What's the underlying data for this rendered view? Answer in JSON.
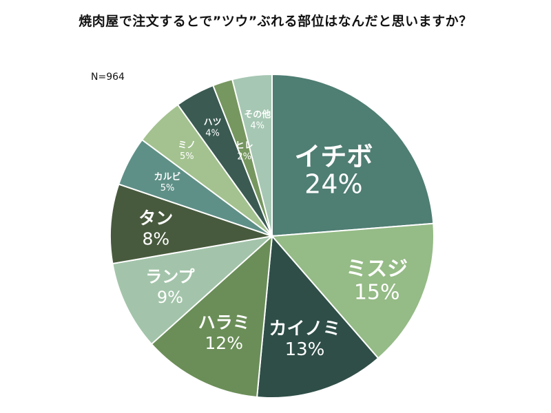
{
  "chart_data": {
    "type": "pie",
    "title": "焼肉屋で注文するとで”ツウ”ぶれる部位はなんだと思いますか？",
    "sample_size": "N=964",
    "slices": [
      {
        "label": "イチボ",
        "value": 24,
        "value_text": "24%",
        "color": "#4f7e73",
        "text_color": "#ffffff"
      },
      {
        "label": "ミスジ",
        "value": 15,
        "value_text": "15%",
        "color": "#95bb86",
        "text_color": "#ffffff"
      },
      {
        "label": "カイノミ",
        "value": 13,
        "value_text": "13%",
        "color": "#2f4e48",
        "text_color": "#ffffff"
      },
      {
        "label": "ハラミ",
        "value": 12,
        "value_text": "12%",
        "color": "#6b8e58",
        "text_color": "#ffffff"
      },
      {
        "label": "ランプ",
        "value": 9,
        "value_text": "9%",
        "color": "#a3c4aa",
        "text_color": "#ffffff"
      },
      {
        "label": "タン",
        "value": 8,
        "value_text": "8%",
        "color": "#485a3d",
        "text_color": "#ffffff"
      },
      {
        "label": "カルビ",
        "value": 5,
        "value_text": "5%",
        "color": "#5f9087",
        "text_color": "#ffffff"
      },
      {
        "label": "ミノ",
        "value": 5,
        "value_text": "5%",
        "color": "#a3c28f",
        "text_color": "#ffffff"
      },
      {
        "label": "ハツ",
        "value": 4,
        "value_text": "4%",
        "color": "#3a5a52",
        "text_color": "#ffffff"
      },
      {
        "label": "ヒレ",
        "value": 2,
        "value_text": "2%",
        "color": "#76975f",
        "text_color": "#ffffff"
      },
      {
        "label": "その他",
        "value": 4,
        "value_text": "4%",
        "color": "#a6c7b3",
        "text_color": "#ffffff"
      }
    ]
  }
}
